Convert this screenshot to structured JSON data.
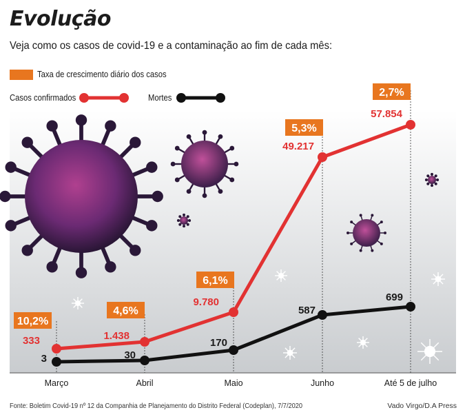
{
  "header": {
    "title": "Evolução",
    "subtitle": "Veja como os casos de covid-19 e a contaminação ao fim de cada mês:"
  },
  "legend": {
    "rate_label": "Taxa de crescimento diário dos casos",
    "cases_label": "Casos confirmados",
    "deaths_label": "Mortes"
  },
  "footer": {
    "source": "Fonte: Boletim Covid-19 nº 12 da Companhia de Planejamento do Distrito Federal (Codeplan), 7/7/2020",
    "credit": "Vado Virgo/D.A Press"
  },
  "colors": {
    "cases": "#e23232",
    "deaths": "#111111",
    "rate": "#e8761f",
    "virus": "#5a2a6e"
  },
  "chart_data": {
    "type": "line",
    "categories": [
      "Março",
      "Abril",
      "Maio",
      "Junho",
      "Até 5 de julho"
    ],
    "series": [
      {
        "name": "Casos confirmados",
        "values": [
          333,
          1438,
          9780,
          49217,
          57854
        ],
        "labels": [
          "333",
          "1.438",
          "9.780",
          "49.217",
          "57.854"
        ]
      },
      {
        "name": "Mortes",
        "values": [
          3,
          30,
          170,
          587,
          699
        ],
        "labels": [
          "3",
          "30",
          "170",
          "587",
          "699"
        ]
      }
    ],
    "rate_labels": [
      "10,2%",
      "4,6%",
      "6,1%",
      "5,3%",
      "2,7%"
    ],
    "title": "Evolução",
    "xlabel": "",
    "ylabel": ""
  }
}
